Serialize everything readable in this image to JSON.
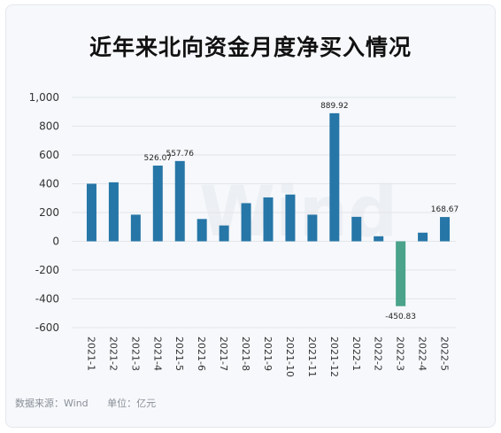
{
  "title": "近年来北向资金月度净买入情况",
  "watermark": "Wind",
  "footer": {
    "source": "数据来源：Wind",
    "unit": "单位：亿元"
  },
  "colors": {
    "positive": "#2676a7",
    "negative": "#4aa38a",
    "grid": "#e3e6ea",
    "axis_text": "#333333"
  },
  "chart_data": {
    "type": "bar",
    "title": "近年来北向资金月度净买入情况",
    "xlabel": "",
    "ylabel": "",
    "unit": "亿元",
    "ylim": [
      -600,
      1000
    ],
    "yticks": [
      1000,
      800,
      600,
      400,
      200,
      0,
      -200,
      -400,
      -600
    ],
    "ytick_labels": [
      "1,000",
      "800",
      "600",
      "400",
      "200",
      "0",
      "-200",
      "-400",
      "-600"
    ],
    "grid": true,
    "categories": [
      "2021-1",
      "2021-2",
      "2021-3",
      "2021-4",
      "2021-5",
      "2021-6",
      "2021-7",
      "2021-8",
      "2021-9",
      "2021-10",
      "2021-11",
      "2021-12",
      "2022-1",
      "2022-2",
      "2022-3",
      "2022-4",
      "2022-5"
    ],
    "values": [
      400,
      410,
      185,
      526.07,
      557.76,
      155,
      110,
      265,
      305,
      325,
      185,
      889.92,
      170,
      35,
      -450.83,
      60,
      168.67
    ],
    "data_labels": {
      "3": "526.07",
      "4": "557.76",
      "11": "889.92",
      "14": "-450.83",
      "16": "168.67"
    }
  }
}
